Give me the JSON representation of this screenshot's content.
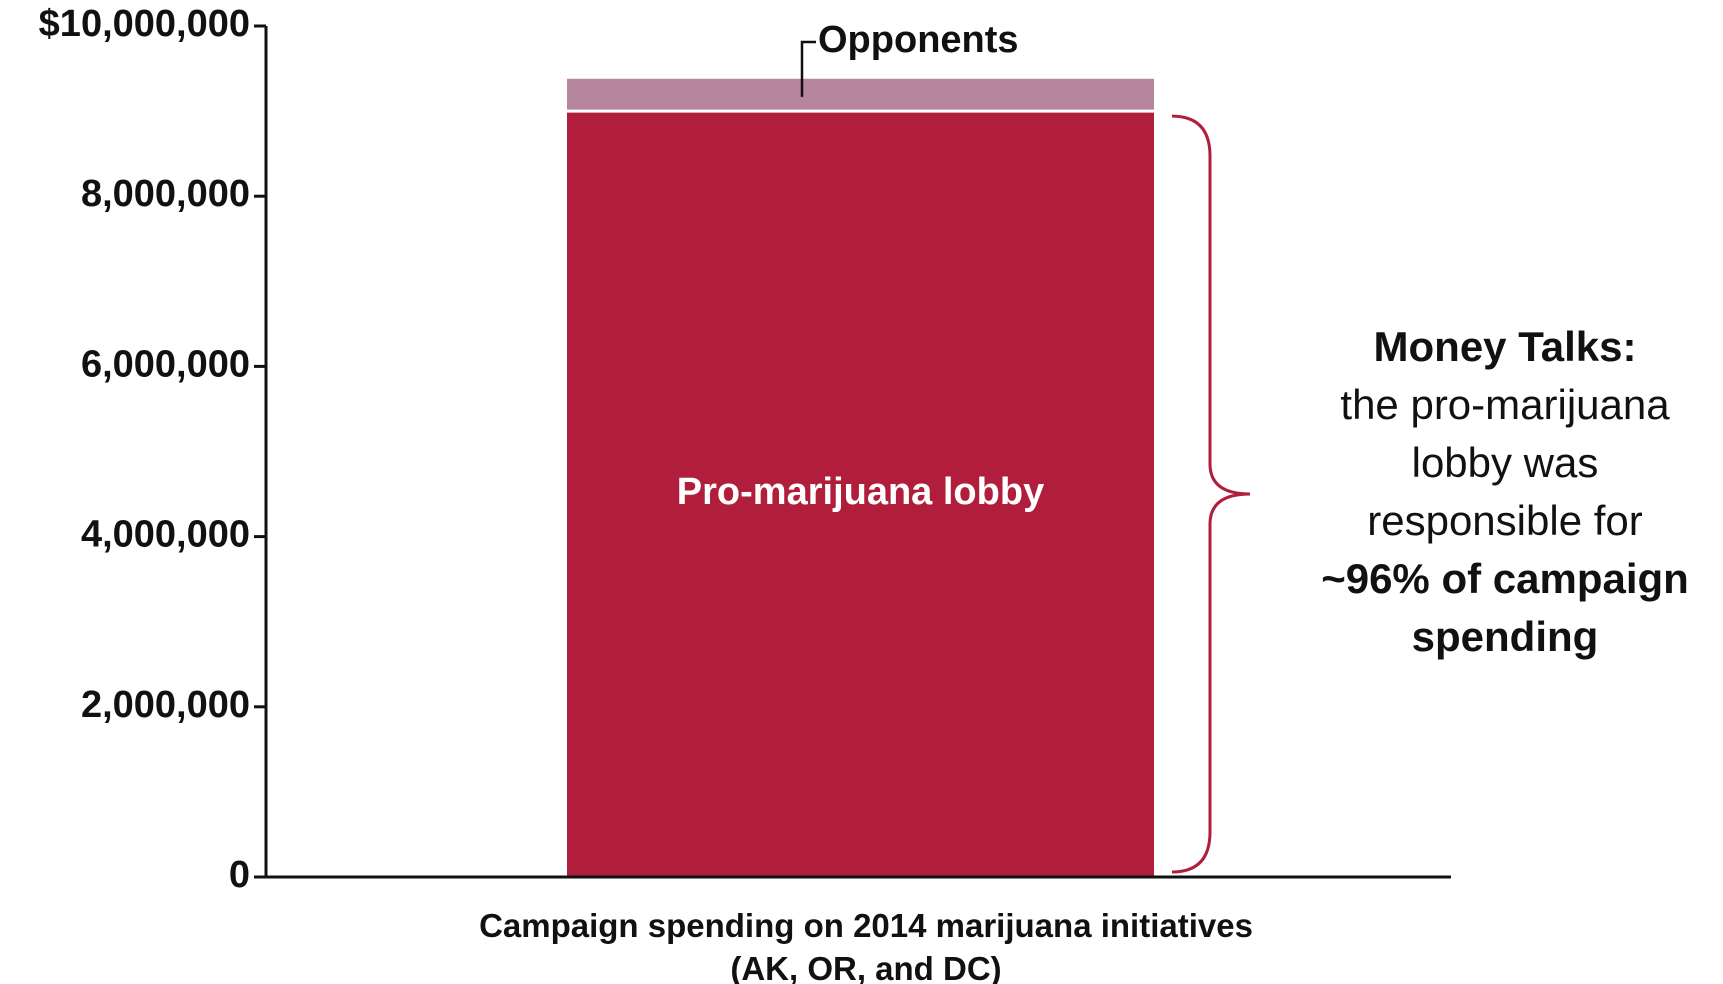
{
  "chart_data": {
    "type": "bar",
    "stacked": true,
    "categories": [
      ""
    ],
    "series": [
      {
        "name": "Pro-marijuana lobby",
        "values": [
          9000000
        ],
        "color": "#b11e3b"
      },
      {
        "name": "Opponents",
        "values": [
          380000
        ],
        "color": "#b6869f"
      }
    ],
    "yticks": [
      "0",
      "2,000,000",
      "4,000,000",
      "6,000,000",
      "8,000,000",
      "$10,000,000"
    ],
    "ylim": [
      0,
      10000000
    ],
    "xlabel_line1": "Campaign spending on 2014 marijuana initiatives",
    "xlabel_line2": "(AK, OR, and DC)",
    "grid": false,
    "legend": "none",
    "accent_color": "#b11e3b"
  },
  "annotation": {
    "heading": "Money Talks:",
    "line1": "the pro-marijuana",
    "line2": "lobby was",
    "line3": "responsible for",
    "emphasis1": "~96% of campaign",
    "emphasis2": "spending"
  }
}
